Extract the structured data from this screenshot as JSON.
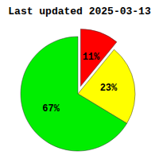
{
  "chart_data": {
    "type": "pie",
    "title": "Last updated 2025-03-13",
    "values": [
      11,
      23,
      67
    ],
    "value_labels": [
      "11%",
      "23%",
      "67%"
    ],
    "colors": [
      "#ff0000",
      "#ffff00",
      "#00ee00"
    ],
    "data_labels": true
  }
}
